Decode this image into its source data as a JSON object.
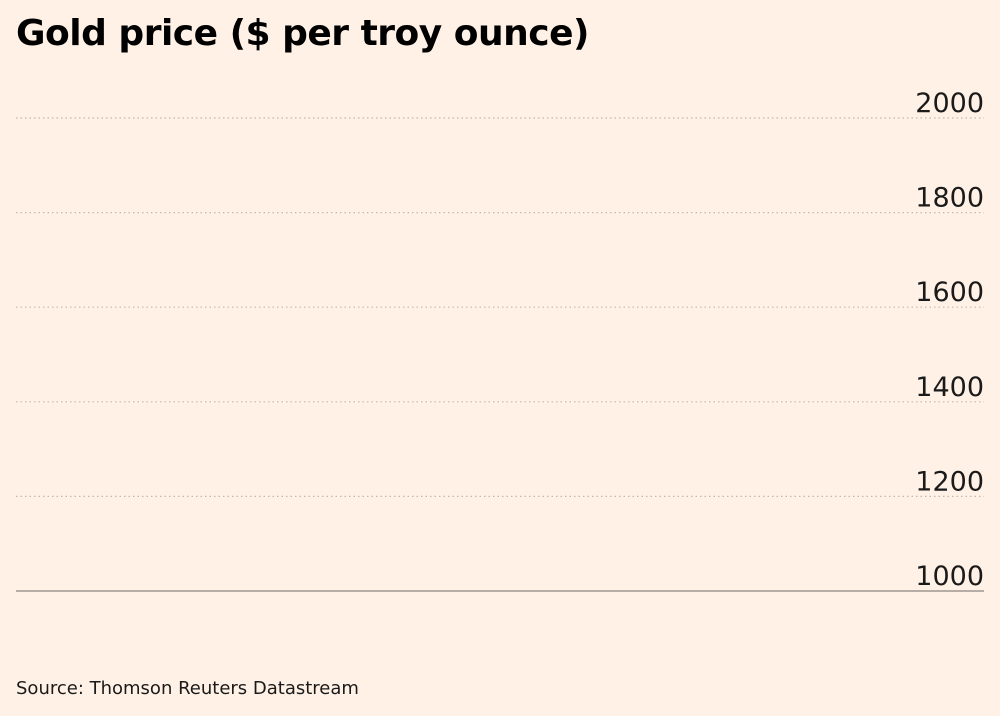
{
  "chart_data": {
    "type": "line",
    "title": "Gold price ($ per troy ounce)",
    "xlabel": "",
    "ylabel": "",
    "ylim": [
      1000,
      2000
    ],
    "y_ticks": [
      2000,
      1800,
      1600,
      1400,
      1200,
      1000
    ],
    "y_tick_labels": [
      "2000",
      "1800",
      "1600",
      "1400",
      "1200",
      "1000"
    ],
    "grid": true,
    "series": [],
    "source": "Source: Thomson Reuters Datastream"
  },
  "colors": {
    "background": "#fff1e5",
    "text": "#000000",
    "gridline": "#c4b8aa",
    "baseline": "#9e9891"
  }
}
